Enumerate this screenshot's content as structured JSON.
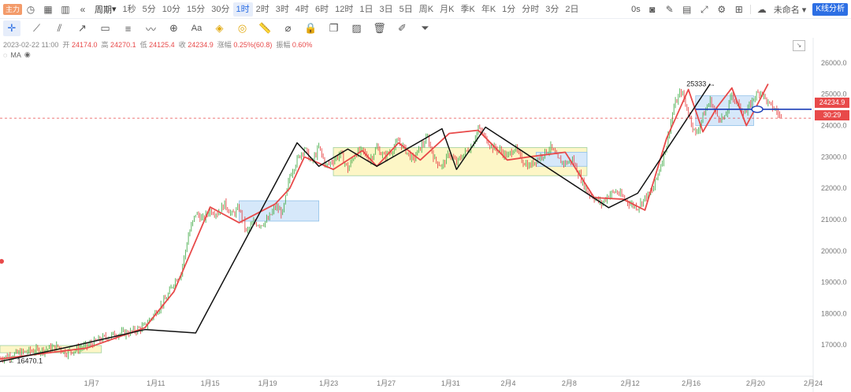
{
  "toolbar": {
    "badge": "主力",
    "period_label": "周期",
    "timeframes": [
      "1秒",
      "5分",
      "10分",
      "15分",
      "30分",
      "1时",
      "2时",
      "3时",
      "4时",
      "6时",
      "12时",
      "1日",
      "3日",
      "5日",
      "周K",
      "月K",
      "季K",
      "年K",
      "1分",
      "分时",
      "3分",
      "2日"
    ],
    "active_timeframe": "1时",
    "countdown": "0s",
    "layout_name": "未命名",
    "analysis_button": "K线分析"
  },
  "ohlc": {
    "date": "2023-02-22 11:00",
    "open_label": "开",
    "open": "24174.0",
    "high_label": "高",
    "high": "24270.1",
    "low_label": "低",
    "low": "24125.4",
    "close_label": "收",
    "close": "24234.9",
    "change_label": "涨幅",
    "change": "0.25%(60.8)",
    "amp_label": "振幅",
    "amp": "0.60%"
  },
  "indicator": {
    "ma_label": "MA"
  },
  "chart_data": {
    "type": "candlestick",
    "title": "",
    "current_price": "24234.9",
    "timer": "30:29",
    "high_marker": "25333",
    "low_marker": "16470.1",
    "y_ticks": [
      "26000.0",
      "25000.0",
      "24000.0",
      "23000.0",
      "22000.0",
      "21000.0",
      "20000.0",
      "19000.0",
      "18000.0",
      "17000.0"
    ],
    "x_ticks": [
      "1月7",
      "1月11",
      "1月15",
      "1月19",
      "1月23",
      "1月27",
      "1月31",
      "2月4",
      "2月8",
      "2月12",
      "2月16",
      "2月20",
      "2月24"
    ],
    "ylim": [
      16000,
      26600
    ],
    "price_path": [
      [
        0,
        16570
      ],
      [
        2,
        16700
      ],
      [
        4,
        16800
      ],
      [
        6,
        16840
      ],
      [
        8,
        16950
      ],
      [
        9,
        16750
      ],
      [
        10,
        16820
      ],
      [
        12,
        16960
      ],
      [
        14,
        17200
      ],
      [
        16,
        17350
      ],
      [
        18,
        17400
      ],
      [
        20,
        17600
      ],
      [
        22,
        18200
      ],
      [
        23,
        18500
      ],
      [
        24,
        19000
      ],
      [
        25,
        19300
      ],
      [
        26,
        20500
      ],
      [
        27,
        21200
      ],
      [
        28,
        21000
      ],
      [
        29,
        21300
      ],
      [
        30,
        21200
      ],
      [
        31,
        21500
      ],
      [
        32,
        21150
      ],
      [
        33,
        21350
      ],
      [
        34,
        20600
      ],
      [
        35,
        20900
      ],
      [
        36,
        20850
      ],
      [
        37,
        21000
      ],
      [
        38,
        21400
      ],
      [
        39,
        21200
      ],
      [
        40,
        22400
      ],
      [
        41,
        22900
      ],
      [
        42,
        23300
      ],
      [
        43,
        22800
      ],
      [
        44,
        23300
      ],
      [
        45,
        22700
      ],
      [
        46,
        22900
      ],
      [
        47,
        23100
      ],
      [
        48,
        22600
      ],
      [
        49,
        23100
      ],
      [
        50,
        23200
      ],
      [
        51,
        22900
      ],
      [
        52,
        23300
      ],
      [
        53,
        23000
      ],
      [
        54,
        23200
      ],
      [
        55,
        23500
      ],
      [
        56,
        23200
      ],
      [
        57,
        22900
      ],
      [
        58,
        23300
      ],
      [
        59,
        23600
      ],
      [
        60,
        22900
      ],
      [
        61,
        22700
      ],
      [
        62,
        23100
      ],
      [
        63,
        22800
      ],
      [
        64,
        23100
      ],
      [
        65,
        23300
      ],
      [
        66,
        23900
      ],
      [
        67,
        23600
      ],
      [
        68,
        23300
      ],
      [
        69,
        23200
      ],
      [
        70,
        23000
      ],
      [
        71,
        23300
      ],
      [
        72,
        22900
      ],
      [
        73,
        22700
      ],
      [
        74,
        22900
      ],
      [
        75,
        23100
      ],
      [
        76,
        23300
      ],
      [
        77,
        22900
      ],
      [
        78,
        22800
      ],
      [
        79,
        22900
      ],
      [
        80,
        22400
      ],
      [
        81,
        21900
      ],
      [
        82,
        21700
      ],
      [
        83,
        21500
      ],
      [
        84,
        21800
      ],
      [
        85,
        21900
      ],
      [
        86,
        21700
      ],
      [
        87,
        21500
      ],
      [
        88,
        21400
      ],
      [
        89,
        21700
      ],
      [
        90,
        21900
      ],
      [
        91,
        22600
      ],
      [
        92,
        23400
      ],
      [
        93,
        24600
      ],
      [
        94,
        25100
      ],
      [
        95,
        24400
      ],
      [
        96,
        23700
      ],
      [
        97,
        24300
      ],
      [
        98,
        24800
      ],
      [
        99,
        24300
      ],
      [
        100,
        24200
      ],
      [
        101,
        25000
      ],
      [
        102,
        24600
      ],
      [
        103,
        24400
      ],
      [
        104,
        24900
      ],
      [
        105,
        25100
      ],
      [
        106,
        24700
      ],
      [
        107,
        24500
      ],
      [
        108,
        24200
      ]
    ],
    "zigzag_black": [
      [
        0,
        16470
      ],
      [
        10,
        16960
      ],
      [
        20,
        17490
      ],
      [
        27,
        17380
      ],
      [
        41,
        23450
      ],
      [
        44,
        22700
      ],
      [
        48,
        23250
      ],
      [
        52,
        22700
      ],
      [
        61,
        23900
      ],
      [
        63,
        22600
      ],
      [
        67,
        23950
      ],
      [
        84,
        21380
      ],
      [
        88,
        21840
      ],
      [
        98,
        25330
      ]
    ],
    "zigzag_red": [
      [
        0,
        16550
      ],
      [
        5,
        16700
      ],
      [
        12,
        16900
      ],
      [
        20,
        17550
      ],
      [
        24,
        18700
      ],
      [
        29,
        21400
      ],
      [
        33,
        20900
      ],
      [
        38,
        21500
      ],
      [
        40,
        22000
      ],
      [
        42,
        23000
      ],
      [
        46,
        22600
      ],
      [
        50,
        23200
      ],
      [
        52,
        22700
      ],
      [
        55,
        23450
      ],
      [
        58,
        22900
      ],
      [
        62,
        23750
      ],
      [
        66,
        23850
      ],
      [
        70,
        22900
      ],
      [
        73,
        23000
      ],
      [
        78,
        23150
      ],
      [
        82,
        21700
      ],
      [
        86,
        21650
      ],
      [
        89,
        21300
      ],
      [
        92,
        23600
      ],
      [
        95,
        25150
      ],
      [
        97,
        23800
      ],
      [
        99,
        24600
      ],
      [
        101,
        25200
      ],
      [
        103,
        24000
      ],
      [
        106,
        25330
      ]
    ],
    "boxes": [
      {
        "x0": 0,
        "x1": 14,
        "y0": 16750,
        "y1": 16980,
        "fill": "#fdf6c6"
      },
      {
        "x0": 33,
        "x1": 44,
        "y0": 20950,
        "y1": 21600,
        "fill": "#d6e8fa"
      },
      {
        "x0": 46,
        "x1": 81,
        "y0": 22400,
        "y1": 23300,
        "fill": "#fdf6c6"
      },
      {
        "x0": 74,
        "x1": 81,
        "y0": 22700,
        "y1": 23150,
        "fill": "#d6e8fa"
      },
      {
        "x0": 96,
        "x1": 104,
        "y0": 24000,
        "y1": 24950,
        "fill": "#d6e8fa"
      }
    ],
    "h_line_price": 24520,
    "colors": {
      "up": "#4caf50",
      "down": "#e84a4a",
      "zig_red": "#e84a4a",
      "zig_black": "#111111",
      "hline": "#1c3fb8"
    }
  }
}
